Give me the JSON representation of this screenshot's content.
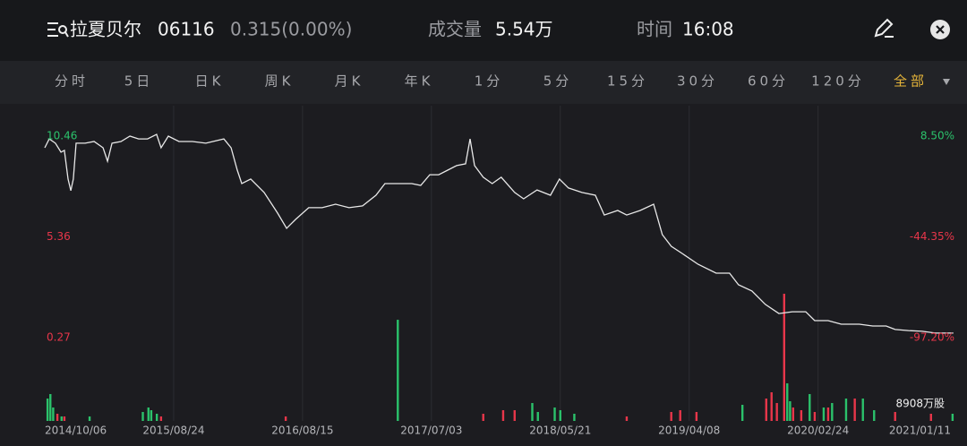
{
  "header": {
    "name": "拉夏贝尔",
    "code": "06116",
    "quote": "0.315(0.00%)",
    "volume_label": "成交量",
    "volume": "5.54万",
    "time_label": "时间",
    "time": "16:08"
  },
  "tabs": {
    "items": [
      "分时",
      "5日",
      "日K",
      "周K",
      "月K",
      "年K",
      "1分",
      "5分",
      "15分",
      "30分",
      "60分",
      "120分",
      "全部"
    ],
    "active": 12
  },
  "chart_data": [
    {
      "type": "line",
      "color": "#e8e8e8",
      "up_color": "#2bc26b",
      "down_color": "#e8364a",
      "x": [
        0,
        1.6,
        3.8,
        5.8,
        7,
        8.3,
        9.3,
        10.2,
        11.2,
        14.4,
        17.6,
        20.8,
        22.4,
        24,
        27.2,
        30.4,
        33.5,
        36.7,
        39.9,
        41.5,
        44.1,
        47.9,
        52.7,
        57.5,
        63.9,
        66.5,
        68.7,
        70.3,
        73.5,
        78.3,
        83.1,
        86.3,
        89.5,
        94.2,
        99,
        103.8,
        108.6,
        113.4,
        118.2,
        121.4,
        126.2,
        131,
        134.2,
        137.4,
        140.6,
        143.8,
        147,
        150.2,
        151.8,
        153.4,
        156.5,
        159.7,
        162.9,
        167.7,
        170.9,
        175.7,
        180.5,
        183.7,
        186.9,
        191.7,
        196.5,
        199.7,
        204.5,
        207.7,
        212.5,
        217.3,
        220.4,
        223.6,
        228.4,
        233.2,
        239.6,
        244.4,
        247.6,
        252.4,
        257.2,
        262,
        266.8,
        271.6,
        274.8,
        279.6,
        284.3,
        290.7,
        295.5,
        300.3,
        303.5,
        308.3,
        313.1,
        317.9,
        324.3
      ],
      "values": [
        9.87,
        10.32,
        10.1,
        9.65,
        9.74,
        8.29,
        7.7,
        8.29,
        10.1,
        10.1,
        10.19,
        9.87,
        9.19,
        10.1,
        10.19,
        10.46,
        10.32,
        10.32,
        10.55,
        9.87,
        10.46,
        10.19,
        10.19,
        10.1,
        10.32,
        9.87,
        8.74,
        8.06,
        8.29,
        7.61,
        6.57,
        5.8,
        6.25,
        6.84,
        6.84,
        7.02,
        6.84,
        6.93,
        7.47,
        8.06,
        8.06,
        8.06,
        7.97,
        8.51,
        8.51,
        8.74,
        8.97,
        9.06,
        10.32,
        8.97,
        8.38,
        8.06,
        8.38,
        7.61,
        7.29,
        7.74,
        7.47,
        8.29,
        7.84,
        7.61,
        7.47,
        6.47,
        6.7,
        6.47,
        6.7,
        7.02,
        5.48,
        4.89,
        4.44,
        3.98,
        3.53,
        3.53,
        2.94,
        2.63,
        1.95,
        1.49,
        1.58,
        1.58,
        1.13,
        1.13,
        0.95,
        0.95,
        0.86,
        0.86,
        0.68,
        0.63,
        0.59,
        0.5,
        0.5
      ],
      "xlim": [
        0,
        325
      ],
      "xticks": [
        {
          "value": 0,
          "label": "2014/10/06"
        },
        {
          "value": 46,
          "label": "2015/08/24"
        },
        {
          "value": 92,
          "label": "2016/08/15"
        },
        {
          "value": 138,
          "label": "2017/07/03"
        },
        {
          "value": 184,
          "label": "2018/05/21"
        },
        {
          "value": 230,
          "label": "2019/04/08"
        },
        {
          "value": 276,
          "label": "2020/02/24"
        },
        {
          "value": 322,
          "label": "2021/01/11"
        }
      ],
      "ylim": [
        0.27,
        10.46
      ],
      "yticks": [
        10.46,
        5.36,
        0.27
      ],
      "y2lim": [
        -97.2,
        8.5
      ],
      "y2ticks": [
        {
          "value": 8.5,
          "label": "8.50%"
        },
        {
          "value": -44.35,
          "label": "-44.35%"
        },
        {
          "value": -97.2,
          "label": "-97.20%"
        }
      ]
    },
    {
      "type": "bar",
      "max_label": "8908万股",
      "ylim": [
        0,
        8908
      ],
      "series": [
        {
          "color": "#2bc26b",
          "x": [
            1,
            2,
            3,
            6,
            16,
            35,
            37,
            38,
            40,
            126,
            174,
            176,
            182,
            184,
            189,
            249,
            265,
            266,
            273,
            278,
            281,
            286,
            292,
            296,
            324
          ],
          "values": [
            1568,
            1881,
            940,
            314,
            314,
            627,
            940,
            752,
            502,
            7085,
            1254,
            627,
            940,
            752,
            502,
            1129,
            2633,
            1379,
            1881,
            940,
            1254,
            1568,
            1568,
            752,
            502
          ]
        },
        {
          "color": "#e8364a",
          "x": [
            4.5,
            7,
            41.5,
            86,
            156.5,
            163.6,
            167.7,
            207.7,
            223.6,
            226.8,
            232.6,
            257.5,
            259.4,
            261.3,
            263.9,
            267.1,
            270,
            274.8,
            279.6,
            289.1,
            303.5,
            316.3
          ],
          "values": [
            502,
            314,
            314,
            314,
            502,
            752,
            752,
            314,
            627,
            752,
            627,
            1568,
            2006,
            1254,
            8908,
            940,
            752,
            627,
            940,
            1568,
            627,
            502
          ]
        }
      ]
    }
  ]
}
